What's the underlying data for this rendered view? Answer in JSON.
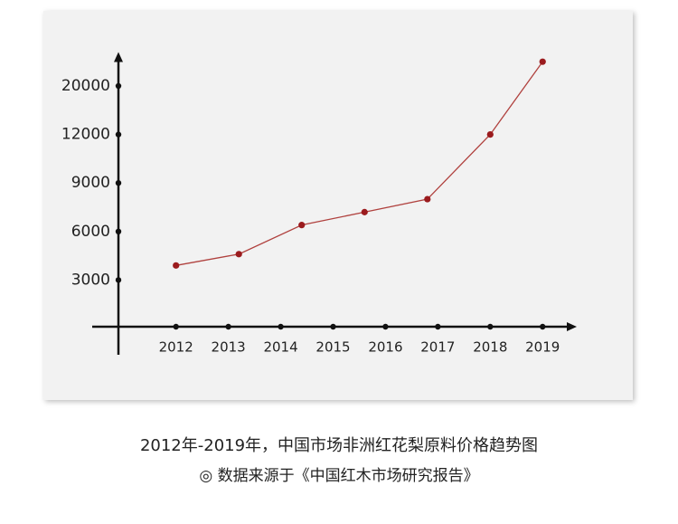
{
  "chart_data": {
    "type": "line",
    "title": "2012年-2019年，中国市场非洲红花梨原料价格趋势图",
    "source": "◎ 数据来源于《中国红木市场研究报告》",
    "x": [
      2012,
      2013.2,
      2014.4,
      2015.6,
      2016.8,
      2018,
      2019
    ],
    "series": [
      {
        "color": "#b0413e",
        "marker_color": "#9b1b1e",
        "values": [
          3900,
          4600,
          6400,
          7200,
          8000,
          12000,
          24000
        ]
      }
    ],
    "xlim": [
      2010.4,
      2019.6
    ],
    "xticks": [
      2012,
      2013,
      2014,
      2015,
      2016,
      2017,
      2018,
      2019
    ],
    "ylim": [
      0,
      25000
    ],
    "yticks": [
      3000,
      6000,
      9000,
      12000,
      20000
    ],
    "grid": false
  }
}
